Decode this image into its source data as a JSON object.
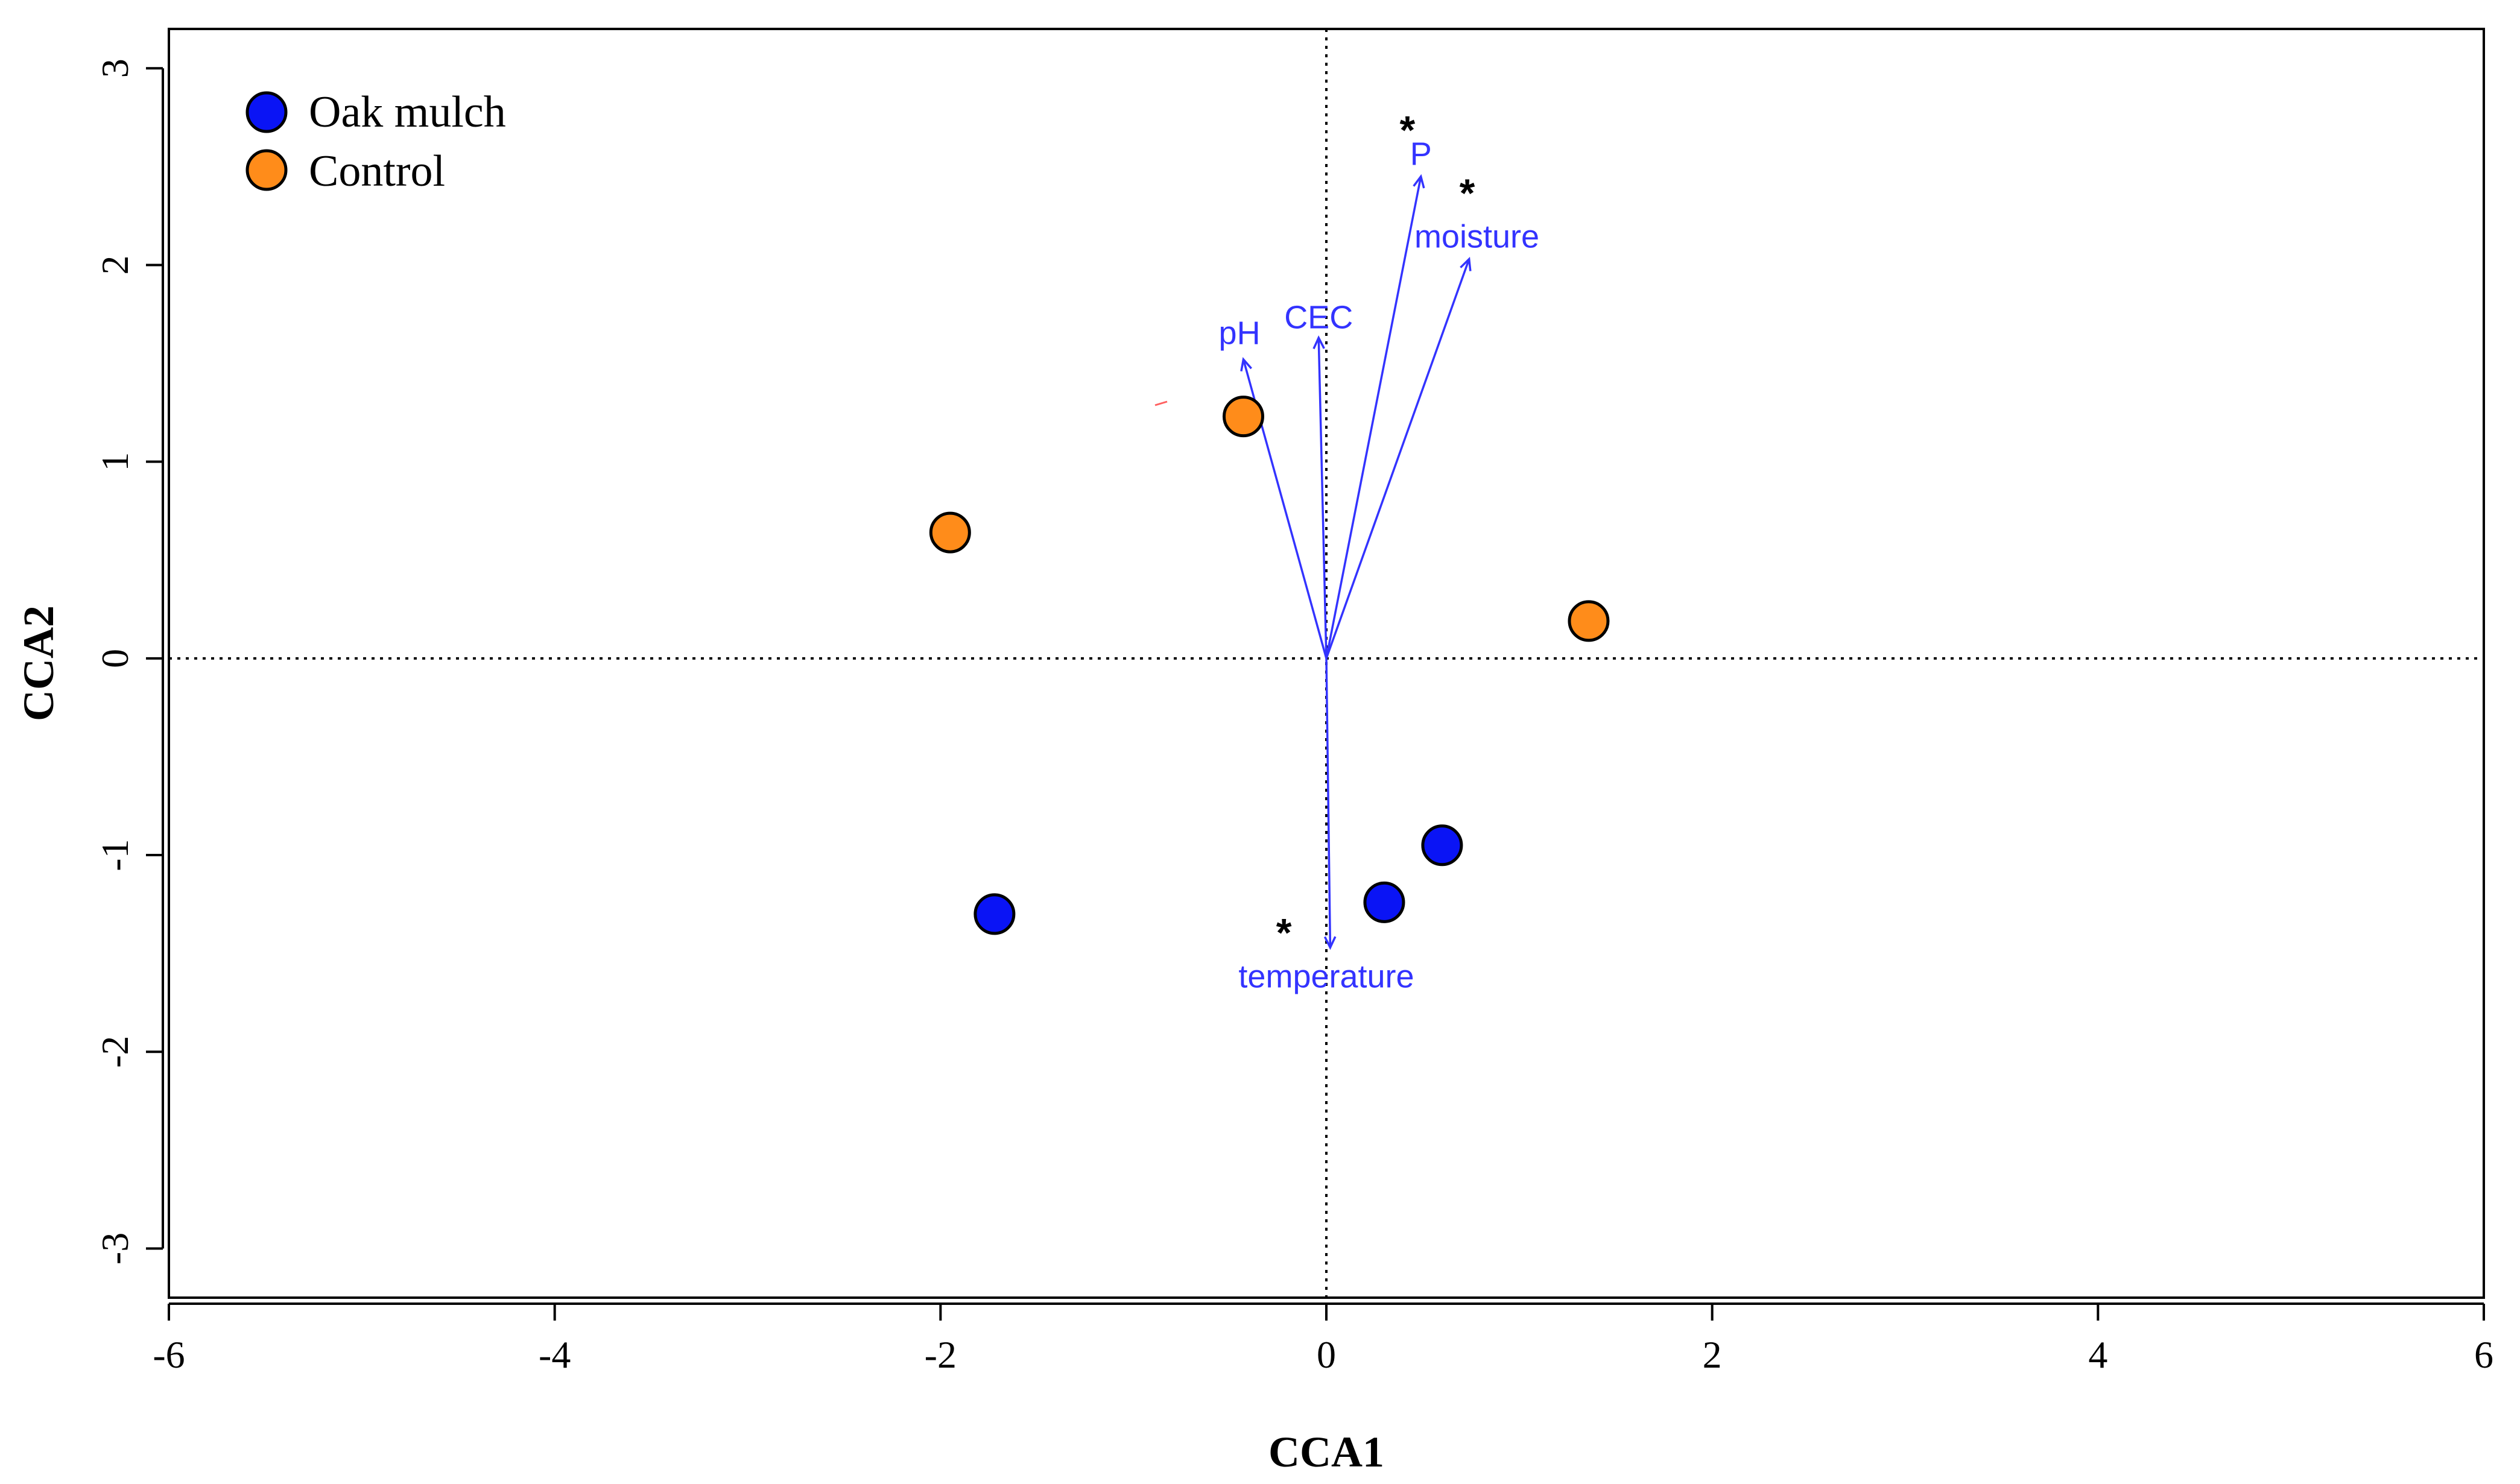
{
  "colors": {
    "oak_mulch": "#0a14f5",
    "control": "#ff8c1a",
    "vector": "#3333ff",
    "axis": "#000000"
  },
  "chart_data": {
    "type": "scatter",
    "title": "",
    "xlabel": "CCA1",
    "ylabel": "CCA2",
    "xlim": [
      -6,
      6
    ],
    "ylim": [
      -3.25,
      3.2
    ],
    "xticks": [
      -6,
      -4,
      -2,
      0,
      2,
      4,
      6
    ],
    "yticks": [
      -3,
      -2,
      -1,
      0,
      1,
      2,
      3
    ],
    "xtick_labels": [
      "-6",
      "-4",
      "-2",
      "0",
      "2",
      "4",
      "6"
    ],
    "ytick_labels": [
      "-3",
      "-2",
      "-1",
      "0",
      "1",
      "2",
      "3"
    ],
    "grid": false,
    "zero_lines": true,
    "legend_position": "top-left",
    "series": [
      {
        "name": "Oak mulch",
        "color": "#0a14f5",
        "points": [
          {
            "x": -1.72,
            "y": -1.3
          },
          {
            "x": 0.3,
            "y": -1.24
          },
          {
            "x": 0.6,
            "y": -0.95
          }
        ]
      },
      {
        "name": "Control",
        "color": "#ff8c1a",
        "points": [
          {
            "x": -1.95,
            "y": 0.64
          },
          {
            "x": -0.43,
            "y": 1.23
          },
          {
            "x": 1.36,
            "y": 0.19
          }
        ]
      }
    ],
    "vectors": [
      {
        "name": "pH",
        "x": -0.43,
        "y": 1.52,
        "label_x": -0.45,
        "label_y": 1.58,
        "significant": false
      },
      {
        "name": "CEC",
        "x": -0.04,
        "y": 1.63,
        "label_x": -0.04,
        "label_y": 1.66,
        "significant": false
      },
      {
        "name": "P",
        "x": 0.49,
        "y": 2.45,
        "label_x": 0.49,
        "label_y": 2.49,
        "significant": true,
        "star_x": 0.42,
        "star_y": 2.72
      },
      {
        "name": "moisture",
        "x": 0.74,
        "y": 2.03,
        "label_x": 0.78,
        "label_y": 2.07,
        "significant": true,
        "star_x": 0.73,
        "star_y": 2.4
      },
      {
        "name": "temperature",
        "x": 0.02,
        "y": -1.47,
        "label_x": 0.0,
        "label_y": -1.55,
        "significant": true,
        "star_x": -0.22,
        "star_y": -1.36
      }
    ],
    "significance_marker": "*"
  }
}
